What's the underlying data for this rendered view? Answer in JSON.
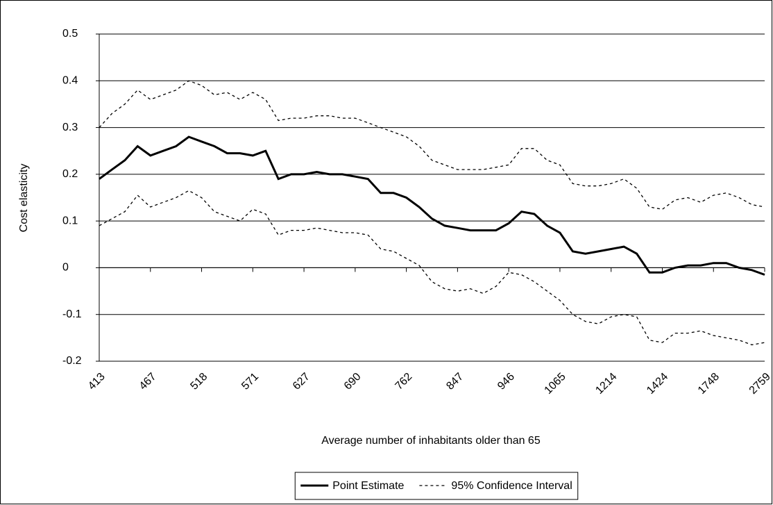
{
  "chart_data": {
    "type": "line",
    "x_label": "Average number of inhabitants older than 65",
    "y_label": "Cost elasticity",
    "categories": [
      "413",
      null,
      null,
      null,
      "467",
      null,
      null,
      null,
      "518",
      null,
      null,
      null,
      "571",
      null,
      null,
      null,
      "627",
      null,
      null,
      null,
      "690",
      null,
      null,
      null,
      "762",
      null,
      null,
      null,
      "847",
      null,
      null,
      null,
      "946",
      null,
      null,
      null,
      "1065",
      null,
      null,
      null,
      "1214",
      null,
      null,
      null,
      "1424",
      null,
      null,
      null,
      "1748",
      null,
      null,
      null,
      "2759"
    ],
    "series": [
      {
        "name": "Point Estimate",
        "color": "#000000",
        "dash": "solid",
        "values": [
          0.19,
          0.21,
          0.23,
          0.26,
          0.24,
          0.25,
          0.26,
          0.28,
          0.27,
          0.26,
          0.245,
          0.245,
          0.24,
          0.25,
          0.19,
          0.2,
          0.2,
          0.205,
          0.2,
          0.2,
          0.195,
          0.19,
          0.16,
          0.16,
          0.15,
          0.13,
          0.105,
          0.09,
          0.085,
          0.08,
          0.08,
          0.08,
          0.095,
          0.12,
          0.115,
          0.09,
          0.075,
          0.035,
          0.03,
          0.035,
          0.04,
          0.045,
          0.03,
          -0.01,
          -0.01,
          0,
          0.005,
          0.005,
          0.01,
          0.01,
          0,
          -0.005,
          -0.015
        ]
      },
      {
        "name": "95% Confidence Interval",
        "color": "#000000",
        "dash": "dotted",
        "values": [
          0.3,
          0.33,
          0.35,
          0.38,
          0.36,
          0.37,
          0.38,
          0.4,
          0.39,
          0.37,
          0.375,
          0.36,
          0.375,
          0.36,
          0.315,
          0.32,
          0.32,
          0.325,
          0.325,
          0.32,
          0.32,
          0.31,
          0.3,
          0.29,
          0.28,
          0.26,
          0.23,
          0.22,
          0.21,
          0.21,
          0.21,
          0.215,
          0.22,
          0.255,
          0.255,
          0.23,
          0.22,
          0.18,
          0.175,
          0.175,
          0.18,
          0.19,
          0.17,
          0.13,
          0.125,
          0.145,
          0.15,
          0.14,
          0.155,
          0.16,
          0.15,
          0.135,
          0.13
        ]
      },
      {
        "color": "#000000",
        "dash": "dotted",
        "values": [
          0.09,
          0.105,
          0.12,
          0.155,
          0.13,
          0.14,
          0.15,
          0.165,
          0.15,
          0.12,
          0.11,
          0.1,
          0.125,
          0.115,
          0.07,
          0.08,
          0.08,
          0.085,
          0.08,
          0.075,
          0.075,
          0.07,
          0.04,
          0.035,
          0.02,
          0.005,
          -0.03,
          -0.045,
          -0.05,
          -0.045,
          -0.055,
          -0.04,
          -0.01,
          -0.015,
          -0.03,
          -0.05,
          -0.07,
          -0.1,
          -0.115,
          -0.12,
          -0.105,
          -0.1,
          -0.105,
          -0.155,
          -0.16,
          -0.14,
          -0.14,
          -0.135,
          -0.145,
          -0.15,
          -0.155,
          -0.165,
          -0.16
        ]
      }
    ],
    "ylim": [
      -0.2,
      0.5
    ],
    "yticks": [
      -0.2,
      -0.1,
      0,
      0.1,
      0.2,
      0.3,
      0.4,
      0.5
    ],
    "grid": true,
    "legend": "bottom"
  }
}
